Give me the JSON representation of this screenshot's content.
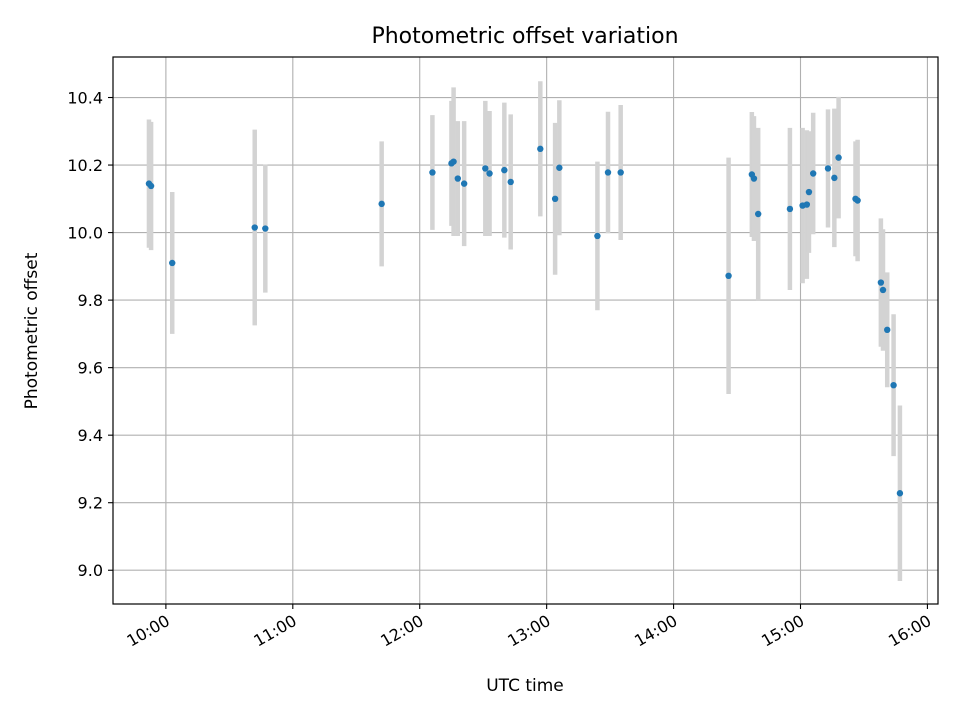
{
  "chart_data": {
    "type": "scatter",
    "title": "Photometric offset variation",
    "xlabel": "UTC time",
    "ylabel": "Photometric offset",
    "xlim": [
      "09:35",
      "16:05"
    ],
    "ylim": [
      8.9,
      10.52
    ],
    "grid": true,
    "x_ticks": [
      "10:00",
      "11:00",
      "12:00",
      "13:00",
      "14:00",
      "15:00",
      "16:00"
    ],
    "y_ticks": [
      9.0,
      9.2,
      9.4,
      9.6,
      9.8,
      10.0,
      10.2,
      10.4
    ],
    "y_tick_labels": [
      "9.0",
      "9.2",
      "9.4",
      "9.6",
      "9.8",
      "10.0",
      "10.2",
      "10.4"
    ],
    "colors": {
      "points": "#1f77b4",
      "error_bars": "#d3d3d3",
      "grid": "#b0b0b0"
    },
    "points": [
      {
        "x": "09:52",
        "y": 10.145,
        "err": 0.19
      },
      {
        "x": "09:53",
        "y": 10.138,
        "err": 0.19
      },
      {
        "x": "10:03",
        "y": 9.91,
        "err": 0.21
      },
      {
        "x": "10:42",
        "y": 10.015,
        "err": 0.29
      },
      {
        "x": "10:47",
        "y": 10.012,
        "err": 0.19
      },
      {
        "x": "11:42",
        "y": 10.085,
        "err": 0.185
      },
      {
        "x": "12:06",
        "y": 10.178,
        "err": 0.17
      },
      {
        "x": "12:15",
        "y": 10.205,
        "err": 0.185
      },
      {
        "x": "12:16",
        "y": 10.21,
        "err": 0.22
      },
      {
        "x": "12:18",
        "y": 10.16,
        "err": 0.17
      },
      {
        "x": "12:21",
        "y": 10.145,
        "err": 0.185
      },
      {
        "x": "12:31",
        "y": 10.19,
        "err": 0.2
      },
      {
        "x": "12:33",
        "y": 10.175,
        "err": 0.185
      },
      {
        "x": "12:40",
        "y": 10.185,
        "err": 0.2
      },
      {
        "x": "12:43",
        "y": 10.15,
        "err": 0.2
      },
      {
        "x": "12:57",
        "y": 10.248,
        "err": 0.2
      },
      {
        "x": "13:04",
        "y": 10.1,
        "err": 0.225
      },
      {
        "x": "13:06",
        "y": 10.192,
        "err": 0.2
      },
      {
        "x": "13:24",
        "y": 9.99,
        "err": 0.22
      },
      {
        "x": "13:29",
        "y": 10.178,
        "err": 0.18
      },
      {
        "x": "13:35",
        "y": 10.178,
        "err": 0.2
      },
      {
        "x": "14:26",
        "y": 9.872,
        "err": 0.35
      },
      {
        "x": "14:37",
        "y": 10.172,
        "err": 0.185
      },
      {
        "x": "14:38",
        "y": 10.16,
        "err": 0.185
      },
      {
        "x": "14:40",
        "y": 10.055,
        "err": 0.255
      },
      {
        "x": "14:55",
        "y": 10.07,
        "err": 0.24
      },
      {
        "x": "15:01",
        "y": 10.08,
        "err": 0.23
      },
      {
        "x": "15:03",
        "y": 10.083,
        "err": 0.22
      },
      {
        "x": "15:04",
        "y": 10.12,
        "err": 0.18
      },
      {
        "x": "15:06",
        "y": 10.175,
        "err": 0.18
      },
      {
        "x": "15:13",
        "y": 10.19,
        "err": 0.175
      },
      {
        "x": "15:16",
        "y": 10.162,
        "err": 0.205
      },
      {
        "x": "15:18",
        "y": 10.222,
        "err": 0.18
      },
      {
        "x": "15:26",
        "y": 10.1,
        "err": 0.17
      },
      {
        "x": "15:27",
        "y": 10.095,
        "err": 0.18
      },
      {
        "x": "15:38",
        "y": 9.852,
        "err": 0.19
      },
      {
        "x": "15:39",
        "y": 9.83,
        "err": 0.18
      },
      {
        "x": "15:41",
        "y": 9.712,
        "err": 0.17
      },
      {
        "x": "15:44",
        "y": 9.548,
        "err": 0.21
      },
      {
        "x": "15:47",
        "y": 9.228,
        "err": 0.26
      }
    ]
  }
}
